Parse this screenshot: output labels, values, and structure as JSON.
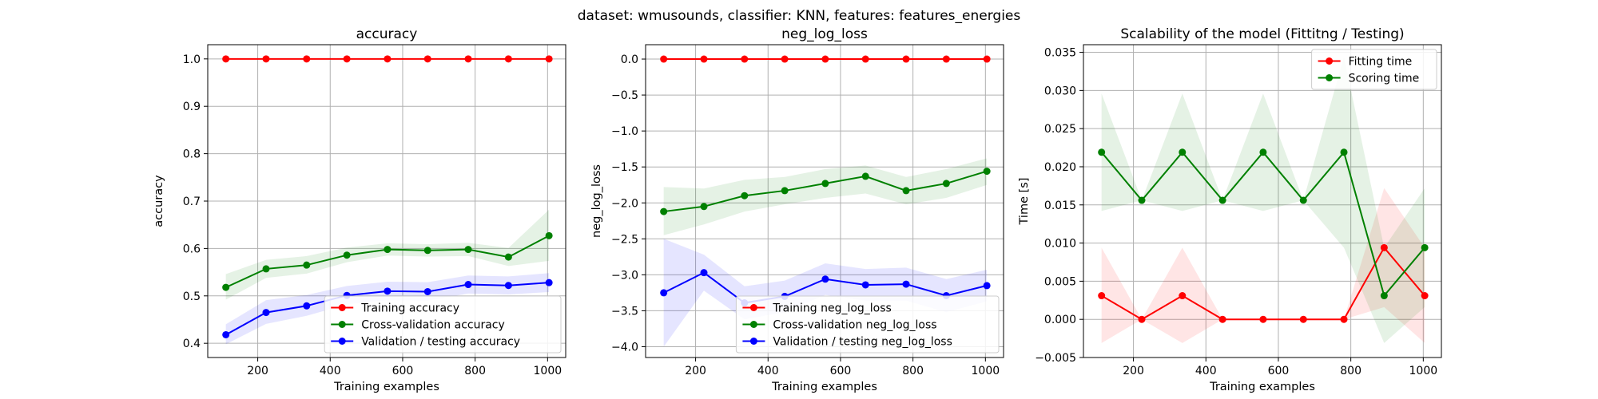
{
  "suptitle": "dataset: wmusounds, classifier: KNN, features: features_energies",
  "chart_data": [
    {
      "type": "line",
      "title": "accuracy",
      "xlabel": "Training examples",
      "ylabel": "accuracy",
      "xlim": [
        62,
        1050
      ],
      "ylim": [
        0.37,
        1.03
      ],
      "xticks": [
        200,
        400,
        600,
        800,
        1000
      ],
      "yticks": [
        0.4,
        0.5,
        0.6,
        0.7,
        0.8,
        0.9,
        1.0
      ],
      "ytick_decimals": 1,
      "legend_position": "lower-right",
      "x": [
        112,
        223,
        335,
        446,
        558,
        669,
        781,
        892,
        1004
      ],
      "series": [
        {
          "name": "Training accuracy",
          "color": "#ff0000",
          "values": [
            1.0,
            1.0,
            1.0,
            1.0,
            1.0,
            1.0,
            1.0,
            1.0,
            1.0
          ],
          "lower": [
            1.0,
            1.0,
            1.0,
            1.0,
            1.0,
            1.0,
            1.0,
            1.0,
            1.0
          ],
          "upper": [
            1.0,
            1.0,
            1.0,
            1.0,
            1.0,
            1.0,
            1.0,
            1.0,
            1.0
          ]
        },
        {
          "name": "Cross-validation accuracy",
          "color": "#008000",
          "values": [
            0.518,
            0.557,
            0.565,
            0.586,
            0.598,
            0.596,
            0.598,
            0.582,
            0.627
          ],
          "lower": [
            0.492,
            0.538,
            0.547,
            0.571,
            0.585,
            0.583,
            0.584,
            0.563,
            0.574
          ],
          "upper": [
            0.546,
            0.576,
            0.584,
            0.602,
            0.611,
            0.609,
            0.612,
            0.601,
            0.682
          ]
        },
        {
          "name": "Validation / testing accuracy",
          "color": "#0000ff",
          "values": [
            0.418,
            0.465,
            0.479,
            0.501,
            0.51,
            0.509,
            0.524,
            0.522,
            0.528
          ],
          "lower": [
            0.398,
            0.441,
            0.458,
            0.482,
            0.491,
            0.49,
            0.505,
            0.503,
            0.508
          ],
          "upper": [
            0.44,
            0.491,
            0.502,
            0.521,
            0.53,
            0.529,
            0.543,
            0.541,
            0.548
          ]
        }
      ]
    },
    {
      "type": "line",
      "title": "neg_log_loss",
      "xlabel": "Training examples",
      "ylabel": "neg_log_loss",
      "xlim": [
        62,
        1050
      ],
      "ylim": [
        -4.15,
        0.2
      ],
      "xticks": [
        200,
        400,
        600,
        800,
        1000
      ],
      "yticks": [
        -4.0,
        -3.5,
        -3.0,
        -2.5,
        -2.0,
        -1.5,
        -1.0,
        -0.5,
        0.0
      ],
      "ytick_decimals": 1,
      "legend_position": "lower-right",
      "x": [
        112,
        223,
        335,
        446,
        558,
        669,
        781,
        892,
        1004
      ],
      "series": [
        {
          "name": "Training neg_log_loss",
          "color": "#ff0000",
          "values": [
            0,
            0,
            0,
            0,
            0,
            0,
            0,
            0,
            0
          ],
          "lower": [
            0,
            0,
            0,
            0,
            0,
            0,
            0,
            0,
            0
          ],
          "upper": [
            0,
            0,
            0,
            0,
            0,
            0,
            0,
            0,
            0
          ]
        },
        {
          "name": "Cross-validation neg_log_loss",
          "color": "#008000",
          "values": [
            -2.12,
            -2.05,
            -1.9,
            -1.83,
            -1.73,
            -1.63,
            -1.83,
            -1.73,
            -1.56
          ],
          "lower": [
            -2.45,
            -2.3,
            -2.12,
            -2.02,
            -1.93,
            -1.87,
            -2.02,
            -1.93,
            -1.75
          ],
          "upper": [
            -1.78,
            -1.8,
            -1.68,
            -1.64,
            -1.53,
            -1.48,
            -1.64,
            -1.53,
            -1.38
          ]
        },
        {
          "name": "Validation / testing neg_log_loss",
          "color": "#0000ff",
          "values": [
            -3.25,
            -2.97,
            -3.39,
            -3.3,
            -3.06,
            -3.14,
            -3.13,
            -3.29,
            -3.15
          ],
          "lower": [
            -4.0,
            -3.22,
            -3.62,
            -3.52,
            -3.28,
            -3.36,
            -3.36,
            -3.52,
            -3.37
          ],
          "upper": [
            -2.5,
            -2.72,
            -3.16,
            -3.08,
            -2.84,
            -2.92,
            -2.9,
            -3.06,
            -2.93
          ]
        }
      ]
    },
    {
      "type": "line",
      "title": "Scalability of the model (Fittitng / Testing)",
      "xlabel": "Training examples",
      "ylabel": "Time [s]",
      "xlim": [
        62,
        1050
      ],
      "ylim": [
        -0.005,
        0.036
      ],
      "xticks": [
        200,
        400,
        600,
        800,
        1000
      ],
      "yticks": [
        -0.005,
        0.0,
        0.005,
        0.01,
        0.015,
        0.02,
        0.025,
        0.03,
        0.035
      ],
      "ytick_decimals": 3,
      "legend_position": "upper-right",
      "x": [
        112,
        223,
        335,
        446,
        558,
        669,
        781,
        892,
        1004
      ],
      "series": [
        {
          "name": "Fitting time",
          "color": "#ff0000",
          "values": [
            0.0031,
            0.0,
            0.0031,
            0.0,
            0.0,
            0.0,
            0.0,
            0.0094,
            0.0031
          ],
          "lower": [
            -0.0031,
            0.0,
            -0.0031,
            0.0,
            0.0,
            0.0,
            0.0,
            0.0016,
            -0.0031
          ],
          "upper": [
            0.0094,
            0.0,
            0.0094,
            0.0,
            0.0,
            0.0,
            0.0,
            0.0172,
            0.0094
          ]
        },
        {
          "name": "Scoring time",
          "color": "#008000",
          "values": [
            0.0219,
            0.0156,
            0.0219,
            0.0156,
            0.0219,
            0.0156,
            0.0219,
            0.0031,
            0.0094
          ],
          "lower": [
            0.0142,
            0.0156,
            0.0142,
            0.0156,
            0.0142,
            0.0156,
            0.0094,
            -0.0031,
            0.0016
          ],
          "upper": [
            0.0296,
            0.0156,
            0.0296,
            0.0156,
            0.0296,
            0.0156,
            0.0344,
            0.0094,
            0.0172
          ]
        }
      ]
    }
  ]
}
